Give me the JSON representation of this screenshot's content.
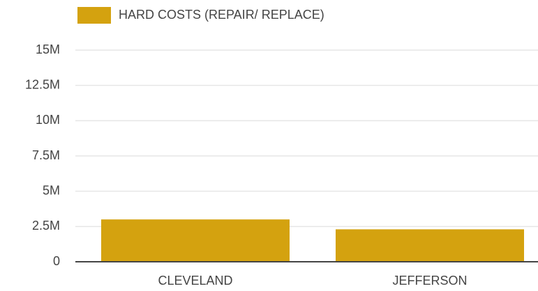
{
  "chart_data": {
    "type": "bar",
    "categories": [
      "CLEVELAND",
      "JEFFERSON"
    ],
    "series": [
      {
        "name": "HARD COSTS (REPAIR/ REPLACE)",
        "color": "#d4a20f",
        "values": [
          3000000,
          2300000
        ]
      }
    ],
    "ylim": [
      0,
      15000000
    ],
    "yticks": [
      0,
      {
        "value": 2500000,
        "label": "2.5M"
      },
      {
        "value": 5000000,
        "label": "5M"
      },
      {
        "value": 7500000,
        "label": "7.5M"
      },
      {
        "value": 10000000,
        "label": "10M"
      },
      {
        "value": 12500000,
        "label": "12.5M"
      },
      {
        "value": 15000000,
        "label": "15M"
      }
    ],
    "grid": true,
    "legend": "top"
  }
}
